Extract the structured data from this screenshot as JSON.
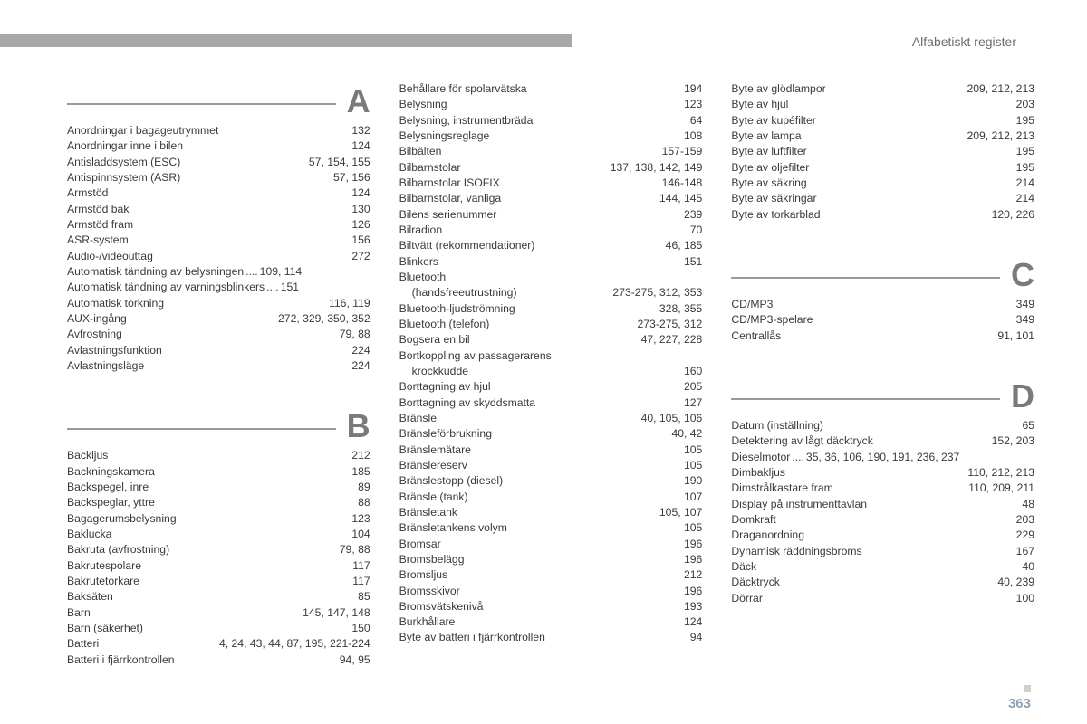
{
  "header": "Alfabetiskt register",
  "page_number": "363",
  "colors": {
    "top_bar": "#a8a8a8",
    "rule": "#9a9a9a",
    "letter": "#7a7a7a",
    "text": "#3a3a3a",
    "page_num": "#8da4b8"
  },
  "columns": [
    {
      "sections": [
        {
          "letter": "A",
          "entries": [
            {
              "term": "Anordningar i bagageutrymmet",
              "pages": "132"
            },
            {
              "term": "Anordningar inne i bilen",
              "pages": "124"
            },
            {
              "term": "Antisladdsystem (ESC)",
              "pages": "57, 154, 155"
            },
            {
              "term": "Antispinnsystem (ASR)",
              "pages": "57, 156"
            },
            {
              "term": "Armstöd",
              "pages": "124"
            },
            {
              "term": "Armstöd bak",
              "pages": "130"
            },
            {
              "term": "Armstöd fram",
              "pages": "126"
            },
            {
              "term": "ASR-system",
              "pages": "156"
            },
            {
              "term": "Audio-/videouttag",
              "pages": "272"
            },
            {
              "term": "Automatisk tändning av belysningen",
              "pages": "109, 114",
              "tight": true
            },
            {
              "term": "Automatisk tändning av varningsblinkers",
              "pages": "151",
              "tight": true
            },
            {
              "term": "Automatisk torkning",
              "pages": "116, 119"
            },
            {
              "term": "AUX-ingång",
              "pages": "272, 329, 350, 352"
            },
            {
              "term": "Avfrostning",
              "pages": "79, 88"
            },
            {
              "term": "Avlastningsfunktion",
              "pages": "224"
            },
            {
              "term": "Avlastningsläge",
              "pages": "224"
            }
          ]
        },
        {
          "letter": "B",
          "spacer_before": true,
          "entries": [
            {
              "term": "Backljus",
              "pages": "212"
            },
            {
              "term": "Backningskamera",
              "pages": "185"
            },
            {
              "term": "Backspegel, inre",
              "pages": "89"
            },
            {
              "term": "Backspeglar, yttre",
              "pages": "88"
            },
            {
              "term": "Bagagerumsbelysning",
              "pages": "123"
            },
            {
              "term": "Baklucka",
              "pages": "104"
            },
            {
              "term": "Bakruta (avfrostning)",
              "pages": "79, 88"
            },
            {
              "term": "Bakrutespolare",
              "pages": "117"
            },
            {
              "term": "Bakrutetorkare",
              "pages": "117"
            },
            {
              "term": "Baksäten",
              "pages": "85"
            },
            {
              "term": "Barn",
              "pages": "145, 147, 148"
            },
            {
              "term": "Barn (säkerhet)",
              "pages": "150"
            },
            {
              "term": "Batteri",
              "pages": "4, 24, 43, 44, 87, 195, 221-224"
            },
            {
              "term": "Batteri i fjärrkontrollen",
              "pages": "94, 95"
            }
          ]
        }
      ]
    },
    {
      "sections": [
        {
          "letter": "",
          "entries": [
            {
              "term": "Behållare för spolarvätska",
              "pages": "194"
            },
            {
              "term": "Belysning",
              "pages": "123"
            },
            {
              "term": "Belysning, instrumentbräda",
              "pages": "64"
            },
            {
              "term": "Belysningsreglage",
              "pages": "108"
            },
            {
              "term": "Bilbälten",
              "pages": "157-159"
            },
            {
              "term": "Bilbarnstolar",
              "pages": "137, 138, 142, 149"
            },
            {
              "term": "Bilbarnstolar ISOFIX",
              "pages": "146-148"
            },
            {
              "term": "Bilbarnstolar, vanliga",
              "pages": "144, 145"
            },
            {
              "term": "Bilens serienummer",
              "pages": "239"
            },
            {
              "term": "Bilradion",
              "pages": "70"
            },
            {
              "term": "Biltvätt (rekommendationer)",
              "pages": "46, 185"
            },
            {
              "term": "Blinkers",
              "pages": "151"
            },
            {
              "term": "Bluetooth",
              "pages": "",
              "noleader": true
            },
            {
              "term": "(handsfreeutrustning)",
              "pages": "273-275, 312, 353",
              "indent": true
            },
            {
              "term": "Bluetooth-ljudströmning",
              "pages": "328, 355"
            },
            {
              "term": "Bluetooth (telefon)",
              "pages": "273-275, 312"
            },
            {
              "term": "Bogsera en bil",
              "pages": "47, 227, 228"
            },
            {
              "term": "Bortkoppling av passagerarens",
              "pages": "",
              "noleader": true
            },
            {
              "term": "krockkudde",
              "pages": "160",
              "indent": true
            },
            {
              "term": "Borttagning av hjul",
              "pages": "205"
            },
            {
              "term": "Borttagning av skyddsmatta",
              "pages": "127"
            },
            {
              "term": "Bränsle",
              "pages": "40, 105, 106"
            },
            {
              "term": "Bränsleförbrukning",
              "pages": "40, 42"
            },
            {
              "term": "Bränslemätare",
              "pages": "105"
            },
            {
              "term": "Bränslereserv",
              "pages": "105"
            },
            {
              "term": "Bränslestopp (diesel)",
              "pages": "190"
            },
            {
              "term": "Bränsle (tank)",
              "pages": "107"
            },
            {
              "term": "Bränsletank",
              "pages": "105, 107"
            },
            {
              "term": "Bränsletankens volym",
              "pages": "105"
            },
            {
              "term": "Bromsar",
              "pages": "196"
            },
            {
              "term": "Bromsbelägg",
              "pages": "196"
            },
            {
              "term": "Bromsljus",
              "pages": "212"
            },
            {
              "term": "Bromsskivor",
              "pages": "196"
            },
            {
              "term": "Bromsvätskenivå",
              "pages": "193"
            },
            {
              "term": "Burkhållare",
              "pages": "124"
            },
            {
              "term": "Byte av batteri i fjärrkontrollen",
              "pages": "94"
            }
          ]
        }
      ]
    },
    {
      "sections": [
        {
          "letter": "",
          "entries": [
            {
              "term": "Byte av glödlampor",
              "pages": "209, 212, 213"
            },
            {
              "term": "Byte av hjul",
              "pages": "203"
            },
            {
              "term": "Byte av kupéfilter",
              "pages": "195"
            },
            {
              "term": "Byte av lampa",
              "pages": "209, 212, 213"
            },
            {
              "term": "Byte av luftfilter",
              "pages": "195"
            },
            {
              "term": "Byte av oljefilter",
              "pages": "195"
            },
            {
              "term": "Byte av säkring",
              "pages": "214"
            },
            {
              "term": "Byte av säkringar",
              "pages": "214"
            },
            {
              "term": "Byte av torkarblad",
              "pages": "120, 226"
            }
          ]
        },
        {
          "letter": "C",
          "spacer_before": true,
          "entries": [
            {
              "term": "CD/MP3",
              "pages": "349"
            },
            {
              "term": "CD/MP3-spelare",
              "pages": "349"
            },
            {
              "term": "Centrallås",
              "pages": "91, 101"
            }
          ]
        },
        {
          "letter": "D",
          "spacer_before": true,
          "entries": [
            {
              "term": "Datum (inställning)",
              "pages": "65"
            },
            {
              "term": "Detektering av lågt däcktryck",
              "pages": "152, 203"
            },
            {
              "term": "Dieselmotor",
              "pages": "35, 36, 106, 190, 191, 236, 237",
              "tight": true
            },
            {
              "term": "Dimbakljus",
              "pages": "110, 212, 213"
            },
            {
              "term": "Dimstrålkastare fram",
              "pages": "110, 209, 211"
            },
            {
              "term": "Display på instrumenttavlan",
              "pages": "48"
            },
            {
              "term": "Domkraft",
              "pages": "203"
            },
            {
              "term": "Draganordning",
              "pages": "229"
            },
            {
              "term": "Dynamisk räddningsbroms",
              "pages": "167"
            },
            {
              "term": "Däck",
              "pages": "40"
            },
            {
              "term": "Däcktryck",
              "pages": "40, 239"
            },
            {
              "term": "Dörrar",
              "pages": "100"
            }
          ]
        }
      ]
    }
  ]
}
